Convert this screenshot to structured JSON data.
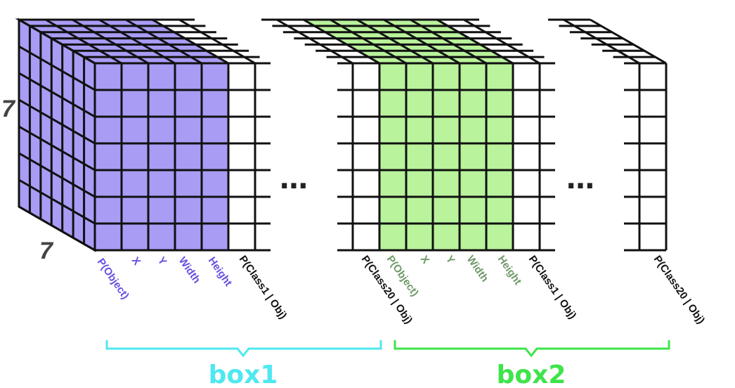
{
  "colors": {
    "purple": "#a89cf5",
    "purple_text": "#6b4fe0",
    "green": "#b9f39b",
    "green_text": "#6f9a6a",
    "box1": "#4fe8f0",
    "box2": "#3ee44a",
    "grid": "#111111"
  },
  "dims": {
    "height_label": "7",
    "depth_label": "7"
  },
  "ellipsis_1": "…",
  "ellipsis_2": "…",
  "box1": {
    "label": "box1",
    "bbox_labels": [
      "P(Object)",
      "X",
      "Y",
      "Width",
      "Height"
    ],
    "class_first": "P(Class1 | Obj)",
    "class_last": "P(Class20 | Obj)"
  },
  "box2": {
    "label": "box2",
    "bbox_labels": [
      "P(Object)",
      "X",
      "Y",
      "Width",
      "Height"
    ],
    "class_first": "P(Class1 | Obj)",
    "class_last": "P(Class20 | Obj)"
  }
}
